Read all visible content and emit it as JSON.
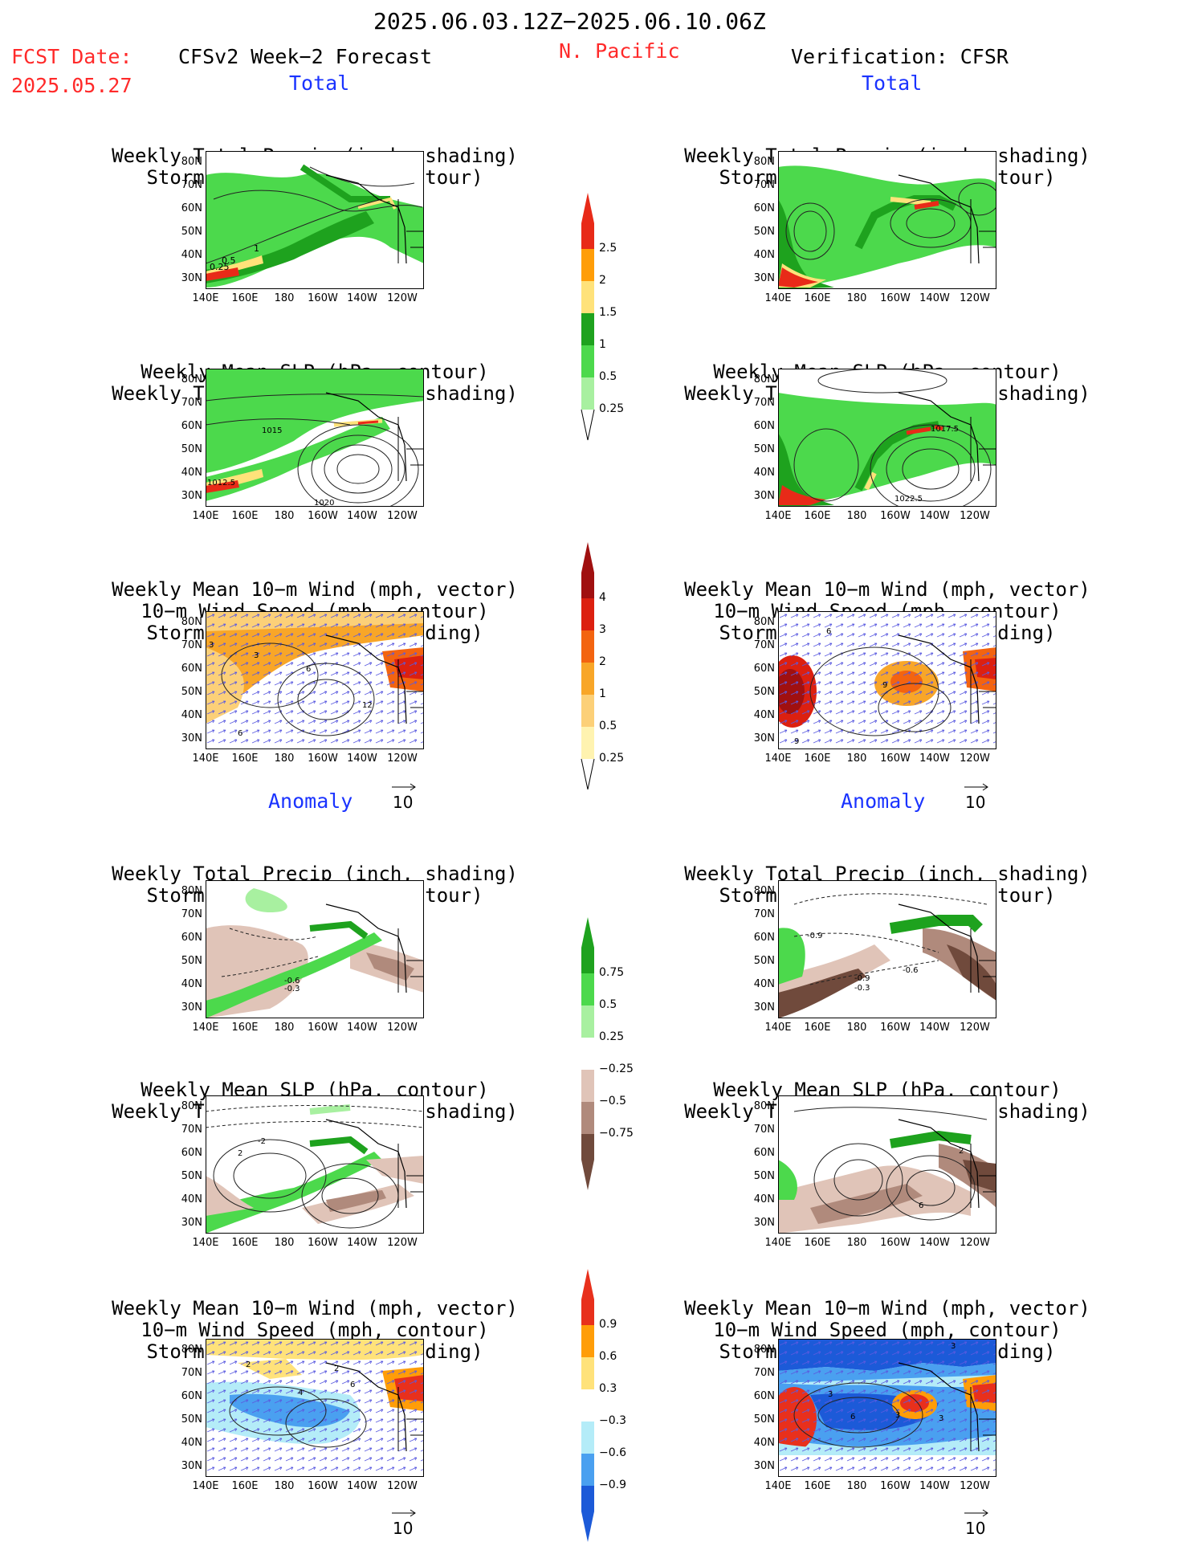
{
  "header": {
    "date_range": "2025.06.03.12Z−2025.06.10.06Z",
    "fcst_label": "FCST Date:",
    "fcst_date": "2025.05.27",
    "model_title": "CFSv2 Week−2 Forecast",
    "region": "N. Pacific",
    "verification_title": "Verification: CFSR"
  },
  "sections": {
    "total": "Total",
    "anomaly": "Anomaly"
  },
  "panel_titles": {
    "precip_storm": [
      "Weekly Total Precip (inch, shading)",
      "Storm Track Density (contour)"
    ],
    "slp_precip": [
      "Weekly Mean SLP (hPa, contour)",
      "Weekly Total Precip (inch, shading)"
    ],
    "wind_storm": [
      "Weekly Mean 10−m Wind (mph, vector)",
      "10−m Wind Speed (mph, contour)",
      "Storm Track Density (shading)"
    ]
  },
  "axes": {
    "lat_labels": [
      "80N",
      "70N",
      "60N",
      "50N",
      "40N",
      "30N"
    ],
    "lon_labels": [
      "140E",
      "160E",
      "180",
      "160W",
      "140W",
      "120W"
    ]
  },
  "vector_scale": "10",
  "contour_labels": {
    "fcst_precip_total": [
      "0.5",
      "0.25",
      "1"
    ],
    "fcst_slp_total": [
      "1015",
      "1012.5",
      "1020"
    ],
    "fcst_wind_total": [
      "3",
      "3",
      "6",
      "12",
      "6"
    ],
    "obs_slp_total": [
      "1017.5",
      "1022.5"
    ],
    "obs_wind_total": [
      "6",
      "9",
      "9"
    ],
    "fcst_precip_anom": [
      "-0.6",
      "-0.3"
    ],
    "obs_precip_anom": [
      "-0.9",
      "-0.6",
      "-0.9",
      "-0.3"
    ],
    "fcst_slp_anom": [
      "-2",
      "2"
    ],
    "obs_slp_anom": [
      "2",
      "6"
    ],
    "fcst_wind_anom": [
      "2",
      "4",
      "2",
      "6"
    ],
    "obs_wind_anom": [
      "3",
      "3",
      "6",
      "3",
      "3"
    ]
  },
  "colorbars": {
    "precip_total": {
      "labels": [
        "2.5",
        "2",
        "1.5",
        "1",
        "0.5",
        "0.25"
      ],
      "colors": [
        "#e82a18",
        "#ff9d08",
        "#ffe27a",
        "#1ea21e",
        "#4cd94c",
        "#a8f0a0"
      ]
    },
    "storm_total": {
      "labels": [
        "4",
        "3",
        "2",
        "1",
        "0.5",
        "0.25"
      ],
      "colors": [
        "#a01010",
        "#dc2010",
        "#f36410",
        "#f8a628",
        "#fcd078",
        "#fff3b0"
      ]
    },
    "precip_anom": {
      "labels": [
        "0.75",
        "0.5",
        "0.25",
        "−0.25",
        "−0.5",
        "−0.75"
      ],
      "colors": [
        "#1ea21e",
        "#4cd94c",
        "#a8f0a0",
        "#ffffff",
        "#e0c4b8",
        "#b08a7c",
        "#704a3c"
      ]
    },
    "storm_anom": {
      "labels": [
        "0.9",
        "0.6",
        "0.3",
        "−0.3",
        "−0.6",
        "−0.9"
      ],
      "colors": [
        "#e8301c",
        "#ff9d08",
        "#ffe27a",
        "#ffffff",
        "#b4ecf8",
        "#4aa0f0",
        "#1c5ad8"
      ]
    }
  }
}
